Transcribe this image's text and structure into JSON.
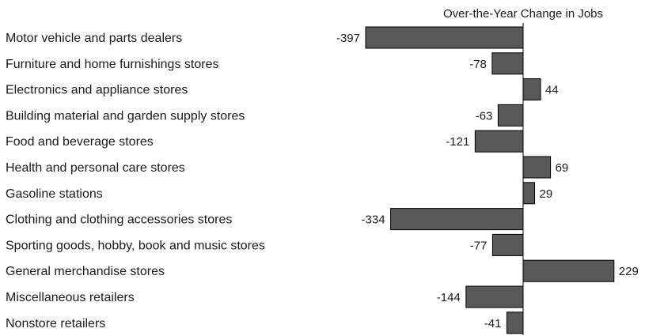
{
  "chart_data": {
    "type": "bar",
    "orientation": "horizontal",
    "title": "Over-the-Year Change in Jobs",
    "xlabel": "",
    "ylabel": "",
    "categories": [
      "Motor vehicle and parts dealers",
      "Furniture and home furnishings stores",
      "Electronics and appliance stores",
      "Building material and garden supply stores",
      "Food and beverage stores",
      "Health and personal care stores",
      "Gasoline stations",
      "Clothing and clothing accessories stores",
      "Sporting goods, hobby, book and music stores",
      "General merchandise stores",
      "Miscellaneous retailers",
      "Nonstore retailers"
    ],
    "values": [
      -397,
      -78,
      44,
      -63,
      -121,
      69,
      29,
      -334,
      -77,
      229,
      -144,
      -41
    ],
    "grid": false,
    "legend": "none",
    "colors": {
      "bar_fill": "#595959",
      "bar_stroke": "#000000",
      "text": "#1a1a1a"
    }
  }
}
